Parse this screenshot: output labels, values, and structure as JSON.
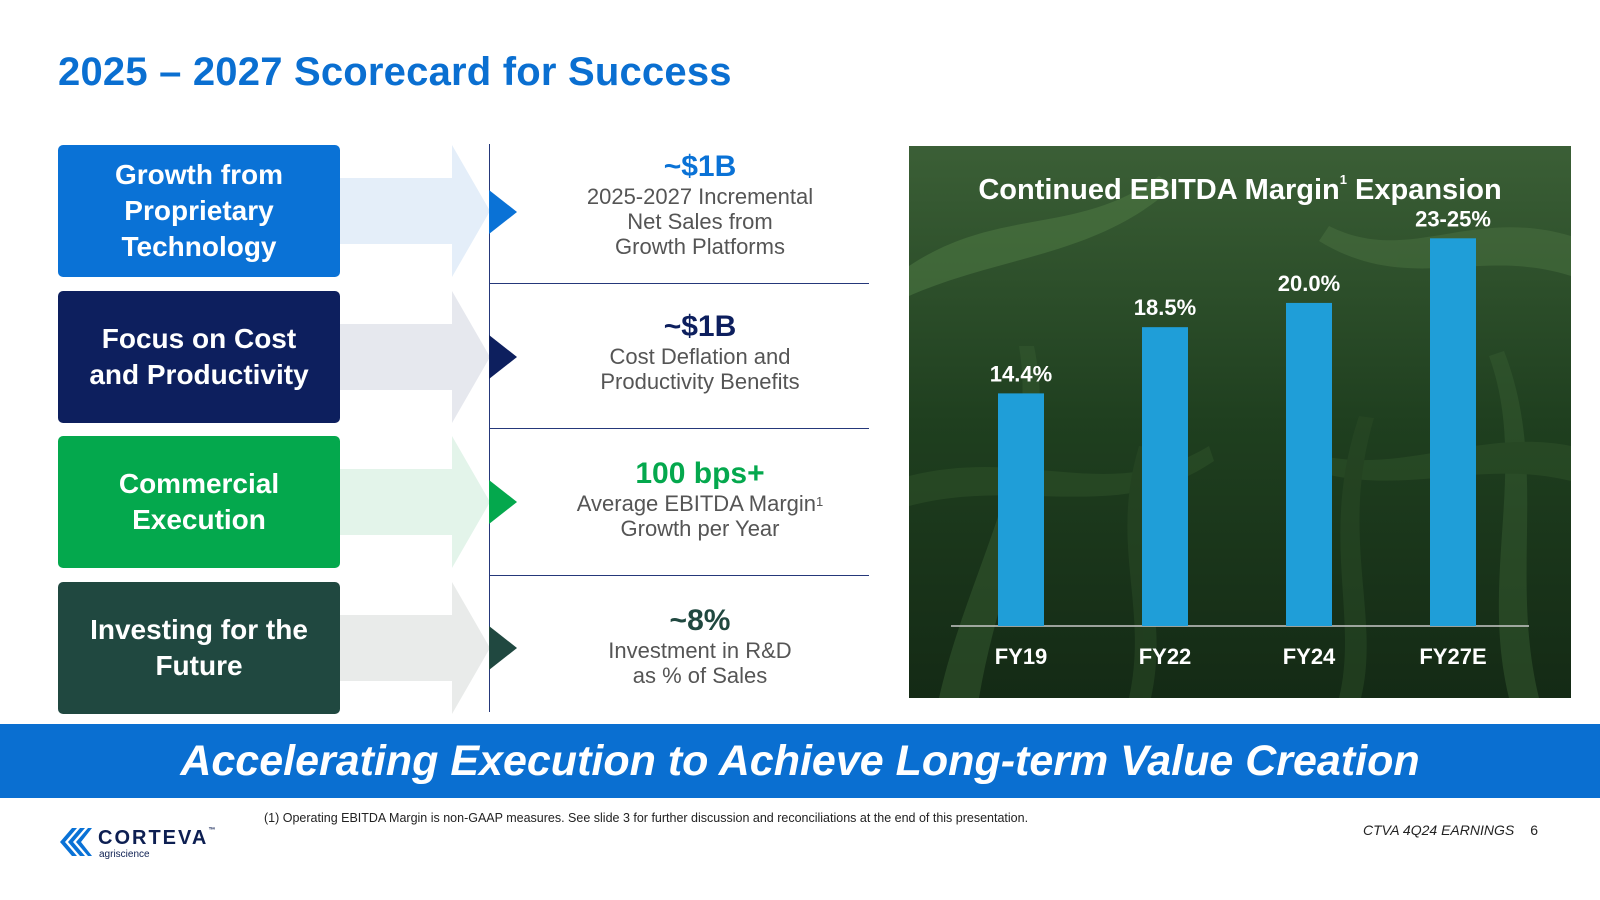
{
  "title": "2025 – 2027 Scorecard for Success",
  "pillars": [
    {
      "label": "Growth from\nProprietary\nTechnology",
      "color": "#0a72d6",
      "arrow_color": "#e4eef9",
      "value": "~$1B",
      "description": "2025-2027 Incremental\nNet Sales from\nGrowth Platforms"
    },
    {
      "label": "Focus on Cost\nand Productivity",
      "color": "#0d1f5e",
      "arrow_color": "#e6e8ee",
      "value": "~$1B",
      "description": "Cost Deflation and\nProductivity Benefits"
    },
    {
      "label": "Commercial\nExecution",
      "color": "#04a84d",
      "arrow_color": "#e3f4ea",
      "value": "100 bps+",
      "description_before_sup": "Average EBITDA Margin",
      "description_sup": "1",
      "description_after_sup": "Growth per Year"
    },
    {
      "label": "Investing for the\nFuture",
      "color": "#204840",
      "arrow_color": "#e9ebea",
      "value": "~8%",
      "description": "Investment in R&D\nas % of Sales"
    }
  ],
  "chart_title_main": "Continued EBITDA Margin",
  "chart_title_sup": "1",
  "chart_title_tail": " Expansion",
  "chart_data": {
    "type": "bar",
    "title": "Continued EBITDA Margin1 Expansion",
    "categories": [
      "FY19",
      "FY22",
      "FY24",
      "FY27E"
    ],
    "values": [
      14.4,
      18.5,
      20.0,
      24.0
    ],
    "data_labels": [
      "14.4%",
      "18.5%",
      "20.0%",
      "23-25%"
    ],
    "bar_color": "#1f9ed8",
    "ylim": [
      0,
      26
    ],
    "grid": false,
    "legend": "none"
  },
  "banner": "Accelerating Execution to Achieve Long-term Value Creation",
  "footnote": "(1) Operating EBITDA Margin is non-GAAP measures. See slide 3 for further discussion and reconciliations at the end of this presentation.",
  "footer": {
    "earnings": "CTVA 4Q24 EARNINGS",
    "page": "6"
  },
  "logo": {
    "name": "CORTEVA",
    "tm": "™",
    "sub": "agriscience"
  },
  "colors": {
    "brand_blue": "#0a6fd1",
    "navy": "#0d1f5e",
    "green": "#04a84d",
    "dark_green": "#204840"
  }
}
